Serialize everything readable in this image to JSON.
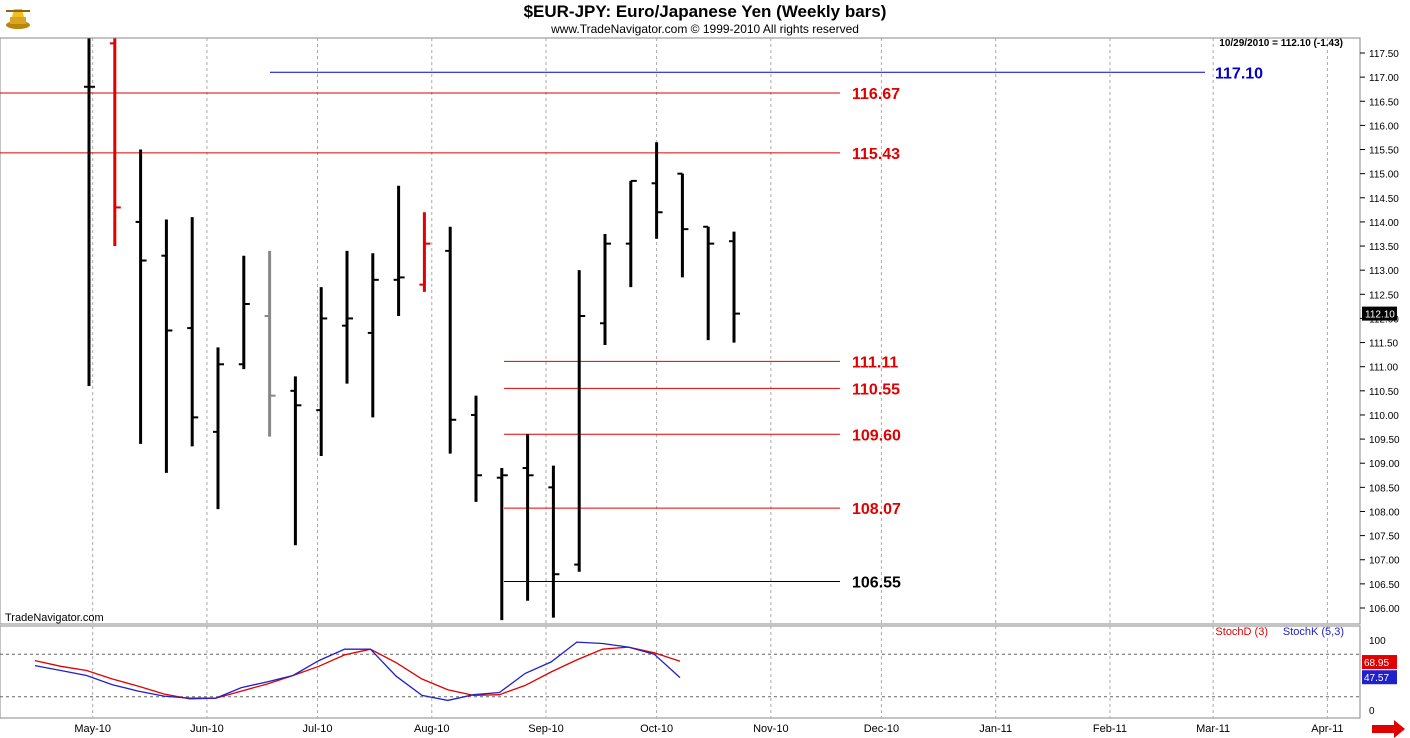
{
  "header": {
    "title": "$EUR-JPY:  Euro/Japanese Yen  (Weekly bars)",
    "subtitle": "www.TradeNavigator.com © 1999-2010 All rights reserved",
    "readout": "10/29/2010 = 112.10 (-1.43)",
    "watermark": "TradeNavigator.com"
  },
  "chart_data": [
    {
      "type": "ohlc",
      "title": "$EUR-JPY:  Euro/Japanese Yen  (Weekly bars)",
      "ylim": [
        105.7,
        117.6
      ],
      "y_ticks": [
        106.0,
        106.5,
        107.0,
        107.5,
        108.0,
        108.5,
        109.0,
        109.5,
        110.0,
        110.5,
        111.0,
        111.5,
        112.0,
        112.5,
        113.0,
        113.5,
        114.0,
        114.5,
        115.0,
        115.5,
        116.0,
        116.5,
        117.0,
        117.5
      ],
      "x_labels": [
        "May-10",
        "Jun-10",
        "Jul-10",
        "Aug-10",
        "Sep-10",
        "Oct-10",
        "Nov-10",
        "Dec-10",
        "Jan-11",
        "Feb-11",
        "Mar-11",
        "Apr-11"
      ],
      "last_price": "112.10",
      "bars": [
        {
          "week": "2010-04-30",
          "open": 116.8,
          "high": 117.8,
          "low": 110.6,
          "close": 116.8,
          "color": "#000000"
        },
        {
          "week": "2010-05-07",
          "open": 117.7,
          "high": 117.8,
          "low": 113.5,
          "close": 114.3,
          "color": "#e00000"
        },
        {
          "week": "2010-05-14",
          "open": 114.0,
          "high": 115.5,
          "low": 109.4,
          "close": 113.2,
          "color": "#000000"
        },
        {
          "week": "2010-05-21",
          "open": 113.3,
          "high": 114.05,
          "low": 108.8,
          "close": 111.75,
          "color": "#000000"
        },
        {
          "week": "2010-05-28",
          "open": 111.8,
          "high": 114.1,
          "low": 109.35,
          "close": 109.95,
          "color": "#000000"
        },
        {
          "week": "2010-06-04",
          "open": 109.65,
          "high": 111.4,
          "low": 108.05,
          "close": 111.05,
          "color": "#000000"
        },
        {
          "week": "2010-06-11",
          "open": 111.05,
          "high": 113.3,
          "low": 110.95,
          "close": 112.3,
          "color": "#000000"
        },
        {
          "week": "2010-06-18",
          "open": 112.05,
          "high": 113.4,
          "low": 109.55,
          "close": 110.4,
          "color": "#888888"
        },
        {
          "week": "2010-06-25",
          "open": 110.5,
          "high": 110.8,
          "low": 107.3,
          "close": 110.2,
          "color": "#000000"
        },
        {
          "week": "2010-07-02",
          "open": 110.1,
          "high": 112.65,
          "low": 109.15,
          "close": 112.0,
          "color": "#000000"
        },
        {
          "week": "2010-07-09",
          "open": 111.85,
          "high": 113.4,
          "low": 110.65,
          "close": 112.0,
          "color": "#000000"
        },
        {
          "week": "2010-07-16",
          "open": 111.7,
          "high": 113.35,
          "low": 109.95,
          "close": 112.8,
          "color": "#000000"
        },
        {
          "week": "2010-07-23",
          "open": 112.8,
          "high": 114.75,
          "low": 112.05,
          "close": 112.85,
          "color": "#000000"
        },
        {
          "week": "2010-07-30",
          "open": 112.7,
          "high": 114.2,
          "low": 112.55,
          "close": 113.55,
          "color": "#e00000"
        },
        {
          "week": "2010-08-06",
          "open": 113.4,
          "high": 113.9,
          "low": 109.2,
          "close": 109.9,
          "color": "#000000"
        },
        {
          "week": "2010-08-13",
          "open": 110.0,
          "high": 110.4,
          "low": 108.2,
          "close": 108.75,
          "color": "#000000"
        },
        {
          "week": "2010-08-20",
          "open": 108.7,
          "high": 108.9,
          "low": 105.75,
          "close": 108.75,
          "color": "#000000"
        },
        {
          "week": "2010-08-27",
          "open": 108.9,
          "high": 109.6,
          "low": 106.15,
          "close": 108.75,
          "color": "#000000"
        },
        {
          "week": "2010-09-03",
          "open": 108.5,
          "high": 108.95,
          "low": 105.8,
          "close": 106.7,
          "color": "#000000"
        },
        {
          "week": "2010-09-10",
          "open": 106.9,
          "high": 113.0,
          "low": 106.75,
          "close": 112.05,
          "color": "#000000"
        },
        {
          "week": "2010-09-17",
          "open": 111.9,
          "high": 113.75,
          "low": 111.45,
          "close": 113.55,
          "color": "#000000"
        },
        {
          "week": "2010-09-24",
          "open": 113.55,
          "high": 114.85,
          "low": 112.65,
          "close": 114.85,
          "color": "#000000"
        },
        {
          "week": "2010-10-01",
          "open": 114.8,
          "high": 115.65,
          "low": 113.65,
          "close": 114.2,
          "color": "#000000"
        },
        {
          "week": "2010-10-08",
          "open": 115.0,
          "high": 115.0,
          "low": 112.85,
          "close": 113.85,
          "color": "#000000"
        },
        {
          "week": "2010-10-15",
          "open": 113.9,
          "high": 113.9,
          "low": 111.55,
          "close": 113.55,
          "color": "#000000"
        },
        {
          "week": "2010-10-22",
          "open": 113.6,
          "high": 113.8,
          "low": 111.5,
          "close": 112.1,
          "color": "#000000"
        }
      ],
      "levels": [
        {
          "value": 117.1,
          "label": "117.10",
          "color": "#0000cc"
        },
        {
          "value": 116.67,
          "label": "116.67",
          "color": "#e00000"
        },
        {
          "value": 115.43,
          "label": "115.43",
          "color": "#e00000"
        },
        {
          "value": 111.11,
          "label": "111.11",
          "color": "#e00000"
        },
        {
          "value": 110.55,
          "label": "110.55",
          "color": "#e00000"
        },
        {
          "value": 109.6,
          "label": "109.60",
          "color": "#e00000"
        },
        {
          "value": 108.07,
          "label": "108.07",
          "color": "#e00000"
        },
        {
          "value": 106.55,
          "label": "106.55",
          "color": "#000000"
        }
      ]
    },
    {
      "type": "line",
      "title": "",
      "ylim": [
        0,
        100
      ],
      "y_ticks": [
        "100",
        "0"
      ],
      "reference_lines": [
        80,
        20
      ],
      "series": [
        {
          "name": "StochD (3)",
          "color": "#e00000",
          "last": "68.95",
          "values": [
            71,
            63,
            57,
            45,
            35,
            24,
            17,
            18,
            28,
            38,
            50,
            63,
            79,
            87,
            68,
            45,
            30,
            22,
            23,
            36,
            55,
            72,
            87,
            90,
            82,
            70
          ]
        },
        {
          "name": "StochK (5,3)",
          "color": "#2020cc",
          "last": "47.57",
          "values": [
            64,
            57,
            50,
            37,
            28,
            21,
            18,
            18,
            33,
            41,
            50,
            71,
            87,
            87,
            49,
            22,
            15,
            23,
            26,
            53,
            69,
            97,
            95,
            90,
            80,
            47
          ]
        }
      ]
    }
  ]
}
